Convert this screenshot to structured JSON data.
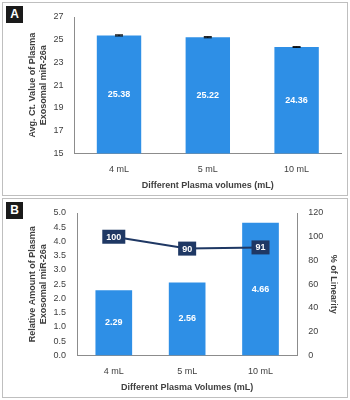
{
  "chart_data": [
    {
      "panel": "A",
      "type": "bar",
      "categories": [
        "4 mL",
        "5 mL",
        "10 mL"
      ],
      "values": [
        25.38,
        25.22,
        24.36
      ],
      "errors": [
        0.05,
        0.05,
        0.03
      ],
      "color": "#2e8fe6",
      "ylabel": [
        "Avg. Ct. Value of Plasma",
        "Exosomal miR-26a"
      ],
      "xlabel": "Different Plasma volumes (mL)",
      "ylim": [
        15,
        27
      ],
      "yticks": [
        15,
        17,
        19,
        21,
        23,
        25,
        27
      ],
      "grid": false,
      "data_labels": true
    },
    {
      "panel": "B",
      "type": "bar",
      "categories": [
        "4 mL",
        "5 mL",
        "10 mL"
      ],
      "series": [
        {
          "type": "bar",
          "color": "#2e8fe6",
          "values": [
            2.29,
            2.56,
            4.66
          ]
        },
        {
          "type": "line",
          "color": "#1f3864",
          "marker": "square",
          "axis": "y2",
          "values": [
            100,
            90,
            91
          ]
        }
      ],
      "ylabel": [
        "Relative Amount of Plasma",
        "Exosomal miR-26a"
      ],
      "y2label": "% of Linearity",
      "xlabel": "Different Plasma Volumes (mL)",
      "ylim": [
        0,
        5
      ],
      "yticks": [
        {
          "value": 0,
          "label": "0.0"
        },
        0.5,
        {
          "value": 1,
          "label": "1.0"
        },
        1.5,
        {
          "value": 2,
          "label": "2.0"
        },
        2.5,
        {
          "value": 3,
          "label": "3.0"
        },
        3.5,
        {
          "value": 4,
          "label": "4.0"
        },
        4.5,
        {
          "value": 5,
          "label": "5.0"
        }
      ],
      "y2lim": [
        0,
        120
      ],
      "y2ticks": [
        0,
        20,
        40,
        60,
        80,
        100,
        120
      ],
      "grid": false,
      "data_labels": true
    }
  ]
}
